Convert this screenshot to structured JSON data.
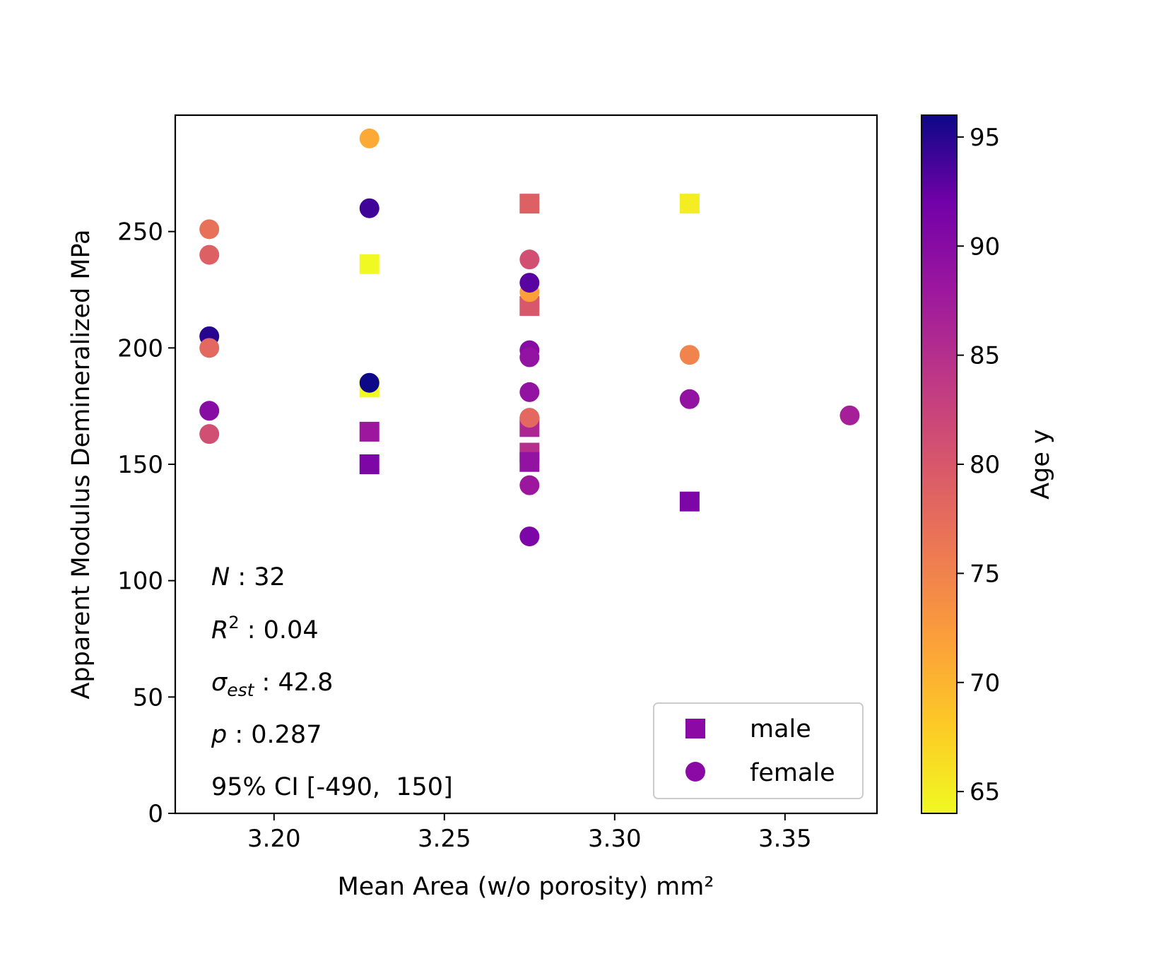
{
  "chart_data": {
    "type": "scatter",
    "xlabel": "Mean Area (w/o porosity) mm²",
    "ylabel": "Apparent Modulus Demineralized MPa",
    "xlim": [
      3.171,
      3.377
    ],
    "ylim": [
      0,
      300
    ],
    "x_ticks": [
      "3.20",
      "3.25",
      "3.30",
      "3.35"
    ],
    "y_ticks": [
      "0",
      "50",
      "100",
      "150",
      "200",
      "250"
    ],
    "grid": false,
    "legend": {
      "placement": "lower-right",
      "entries": [
        {
          "label": "male",
          "marker": "square"
        },
        {
          "label": "female",
          "marker": "circle"
        }
      ],
      "marker_color": "#8b0aa5"
    },
    "colorbar": {
      "label": "Age y",
      "colormap": "plasma",
      "range": [
        64,
        96
      ],
      "ticks": [
        "65",
        "70",
        "75",
        "80",
        "85",
        "90",
        "95"
      ]
    },
    "stats": {
      "n": "32",
      "r2": "0.04",
      "sigma_est": "42.8",
      "p": "0.287",
      "ci": "95% CI [-490,  150]"
    },
    "series": [
      {
        "name": "male",
        "marker": "square",
        "points": [
          {
            "x": 3.228,
            "y": 236,
            "age": 64
          },
          {
            "x": 3.228,
            "y": 183,
            "age": 64
          },
          {
            "x": 3.228,
            "y": 164,
            "age": 88
          },
          {
            "x": 3.228,
            "y": 150,
            "age": 91
          },
          {
            "x": 3.275,
            "y": 262,
            "age": 79
          },
          {
            "x": 3.275,
            "y": 218,
            "age": 80
          },
          {
            "x": 3.275,
            "y": 166,
            "age": 86
          },
          {
            "x": 3.275,
            "y": 155,
            "age": 85
          },
          {
            "x": 3.275,
            "y": 151,
            "age": 89
          },
          {
            "x": 3.322,
            "y": 262,
            "age": 65
          },
          {
            "x": 3.322,
            "y": 134,
            "age": 91
          }
        ]
      },
      {
        "name": "female",
        "marker": "circle",
        "points": [
          {
            "x": 3.181,
            "y": 251,
            "age": 77
          },
          {
            "x": 3.181,
            "y": 240,
            "age": 79
          },
          {
            "x": 3.181,
            "y": 205,
            "age": 95
          },
          {
            "x": 3.181,
            "y": 200,
            "age": 78
          },
          {
            "x": 3.181,
            "y": 173,
            "age": 90
          },
          {
            "x": 3.181,
            "y": 163,
            "age": 81
          },
          {
            "x": 3.228,
            "y": 290,
            "age": 71
          },
          {
            "x": 3.228,
            "y": 260,
            "age": 94
          },
          {
            "x": 3.228,
            "y": 185,
            "age": 96
          },
          {
            "x": 3.275,
            "y": 238,
            "age": 81
          },
          {
            "x": 3.275,
            "y": 224,
            "age": 72
          },
          {
            "x": 3.275,
            "y": 228,
            "age": 93
          },
          {
            "x": 3.275,
            "y": 199,
            "age": 90
          },
          {
            "x": 3.275,
            "y": 196,
            "age": 89
          },
          {
            "x": 3.275,
            "y": 181,
            "age": 89
          },
          {
            "x": 3.275,
            "y": 170,
            "age": 78
          },
          {
            "x": 3.275,
            "y": 141,
            "age": 88
          },
          {
            "x": 3.275,
            "y": 119,
            "age": 91
          },
          {
            "x": 3.322,
            "y": 197,
            "age": 75
          },
          {
            "x": 3.322,
            "y": 178,
            "age": 89
          },
          {
            "x": 3.369,
            "y": 171,
            "age": 87
          }
        ]
      }
    ]
  }
}
